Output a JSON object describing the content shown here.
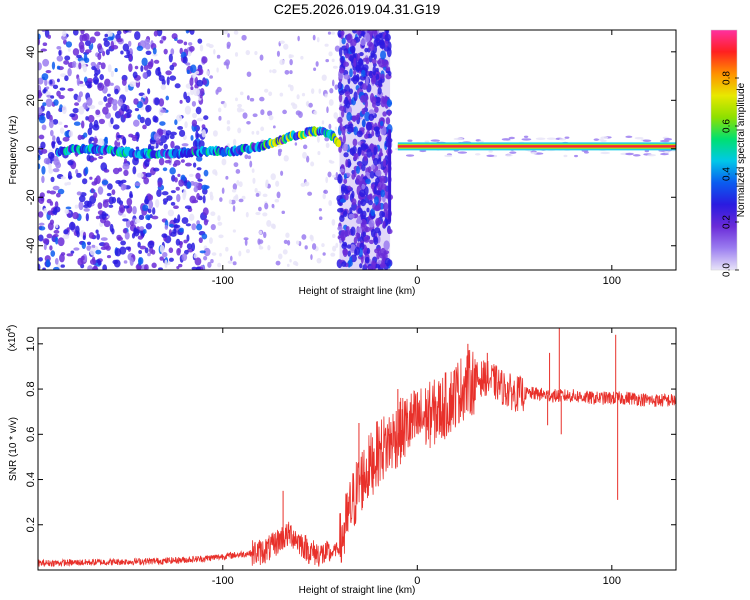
{
  "chart_data": [
    {
      "type": "heatmap",
      "title": "C2E5.2026.019.04.31.G19",
      "xlabel": "Height of straight line (km)",
      "ylabel": "Frequency (Hz)",
      "xlim": [
        -195,
        133
      ],
      "ylim": [
        -50,
        49
      ],
      "xticks": [
        -100,
        0,
        100
      ],
      "xtick_labels": [
        "-100",
        "0",
        "100"
      ],
      "yticks": [
        -40,
        -20,
        0,
        20,
        40
      ],
      "ytick_labels": [
        "-40",
        "-20",
        "0",
        "20",
        "40"
      ],
      "colorbar": {
        "label": "Normalized spectral amplitude",
        "range": [
          0,
          1
        ],
        "ticks": [
          0.0,
          0.2,
          0.4,
          0.6,
          0.8
        ],
        "tick_labels": [
          "0.0",
          "0.2",
          "0.4",
          "0.6",
          "0.8"
        ],
        "colormap": [
          "#e8e4f8",
          "#9b7df0",
          "#6a2bd8",
          "#2a1be0",
          "#0a5cf0",
          "#00c8e8",
          "#00e070",
          "#8ee000",
          "#e8e800",
          "#ff9000",
          "#ff2020",
          "#ff30a0"
        ]
      },
      "ridge": {
        "x": [
          -185,
          -170,
          -155,
          -140,
          -125,
          -110,
          -95,
          -80,
          -65,
          -55,
          -48,
          -43,
          -40
        ],
        "frequency": [
          -1,
          0,
          -1,
          -2,
          -2,
          -1,
          -1,
          1,
          5,
          7,
          7,
          5,
          2
        ]
      },
      "steady_line": {
        "x_start": -10,
        "x_end": 133,
        "frequency": 1,
        "amplitude": 1.0
      },
      "noise_bands": [
        [
          -195,
          -108
        ],
        [
          -40,
          -14
        ]
      ]
    },
    {
      "type": "line",
      "xlabel": "Height of straight line (km)",
      "ylabel": "SNR (10 * v/v)",
      "y_multiplier": "(x10",
      "y_multiplier_exponent": "4",
      "xlim": [
        -195,
        133
      ],
      "ylim": [
        0,
        1.07
      ],
      "xticks": [
        -100,
        0,
        100
      ],
      "xtick_labels": [
        "-100",
        "0",
        "100"
      ],
      "yticks": [
        0.2,
        0.4,
        0.6,
        0.8,
        1.0
      ],
      "ytick_labels": [
        "0.2",
        "0.4",
        "0.6",
        "0.8",
        "1.0"
      ],
      "color": "#e8302a",
      "series": [
        {
          "name": "SNR",
          "x": [
            -195,
            -160,
            -130,
            -110,
            -90,
            -80,
            -75,
            -70,
            -65,
            -60,
            -55,
            -50,
            -45,
            -40,
            -35,
            -30,
            -25,
            -20,
            -15,
            -10,
            -5,
            0,
            5,
            10,
            15,
            20,
            25,
            30,
            35,
            40,
            45,
            50,
            55,
            60,
            70,
            80,
            90,
            100,
            110,
            120,
            133
          ],
          "y": [
            0.03,
            0.035,
            0.04,
            0.05,
            0.07,
            0.08,
            0.1,
            0.14,
            0.16,
            0.12,
            0.08,
            0.07,
            0.07,
            0.1,
            0.25,
            0.38,
            0.45,
            0.52,
            0.56,
            0.6,
            0.64,
            0.66,
            0.68,
            0.7,
            0.73,
            0.78,
            0.82,
            0.84,
            0.85,
            0.83,
            0.8,
            0.78,
            0.78,
            0.78,
            0.77,
            0.77,
            0.76,
            0.76,
            0.76,
            0.75,
            0.75
          ]
        }
      ],
      "spikes": [
        {
          "x": -69,
          "y": 0.35
        },
        {
          "x": -30,
          "y": 0.65
        },
        {
          "x": -10,
          "y": 0.8
        },
        {
          "x": 26,
          "y": 1.0
        },
        {
          "x": 36,
          "y": 0.96
        },
        {
          "x": 68,
          "y": 0.96
        },
        {
          "x": 73,
          "y": 1.08
        },
        {
          "x": 102,
          "y": 1.04
        }
      ],
      "dips": [
        {
          "x": 103,
          "y": 0.31
        },
        {
          "x": 67,
          "y": 0.64
        },
        {
          "x": 74,
          "y": 0.6
        }
      ]
    }
  ]
}
